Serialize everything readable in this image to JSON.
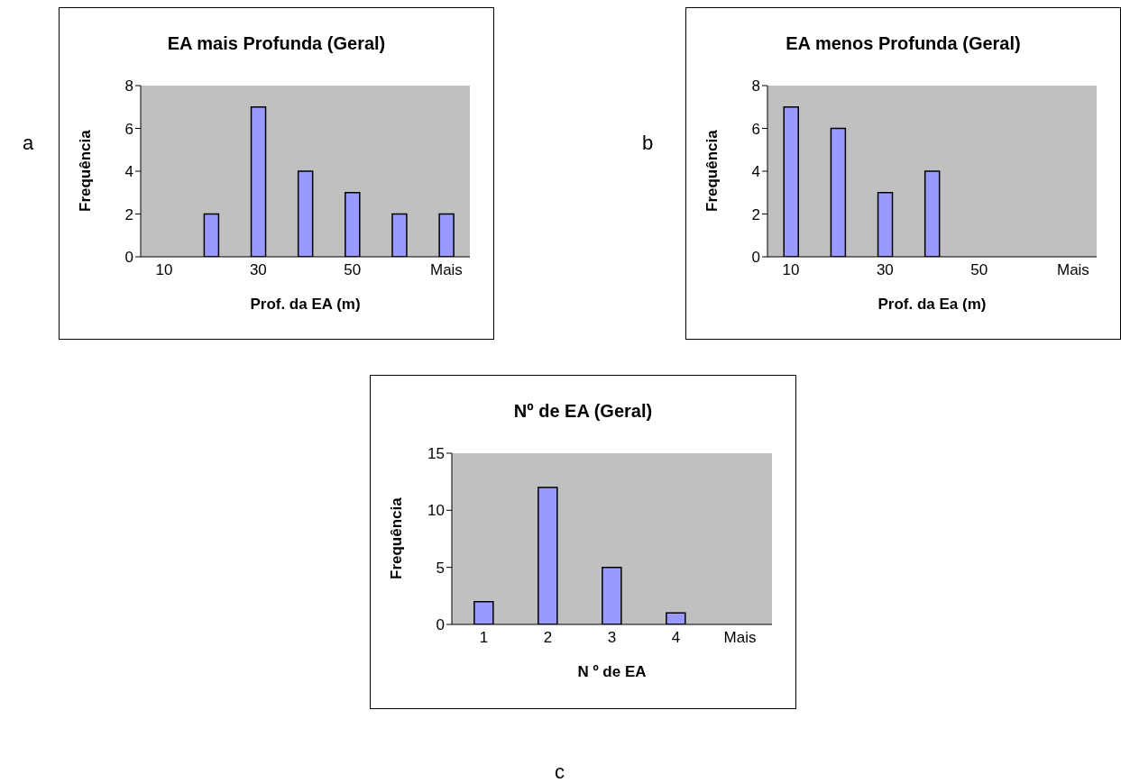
{
  "chart_data": [
    {
      "type": "bar",
      "title": "EA mais Profunda (Geral)",
      "xlabel": "Prof. da EA (m)",
      "ylabel": "Frequência",
      "categories": [
        "10",
        null,
        "30",
        null,
        "50",
        null,
        "Mais"
      ],
      "values": [
        0,
        2,
        7,
        4,
        3,
        2,
        2
      ],
      "color": "#9999ff",
      "ylim": [
        0,
        8
      ],
      "yticks": [
        0,
        2,
        4,
        6,
        8
      ],
      "grid": false,
      "annotations": [
        "a"
      ]
    },
    {
      "type": "bar",
      "title": "EA menos Profunda (Geral)",
      "xlabel": "Prof. da Ea (m)",
      "ylabel": "Frequência",
      "categories": [
        "10",
        null,
        "30",
        null,
        "50",
        null,
        "Mais"
      ],
      "values": [
        7,
        6,
        3,
        4,
        0,
        0,
        0
      ],
      "color": "#9999ff",
      "ylim": [
        0,
        8
      ],
      "yticks": [
        0,
        2,
        4,
        6,
        8
      ],
      "grid": false,
      "annotations": [
        "b"
      ]
    },
    {
      "type": "bar",
      "title": "Nº de EA (Geral)",
      "xlabel": "N º de EA",
      "ylabel": "Frequência",
      "categories": [
        "1",
        "2",
        "3",
        "4",
        "Mais"
      ],
      "values": [
        2,
        12,
        5,
        1,
        0
      ],
      "color": "#9999ff",
      "ylim": [
        0,
        15
      ],
      "yticks": [
        0,
        5,
        10,
        15
      ],
      "grid": false,
      "annotations": [
        "c"
      ]
    }
  ]
}
